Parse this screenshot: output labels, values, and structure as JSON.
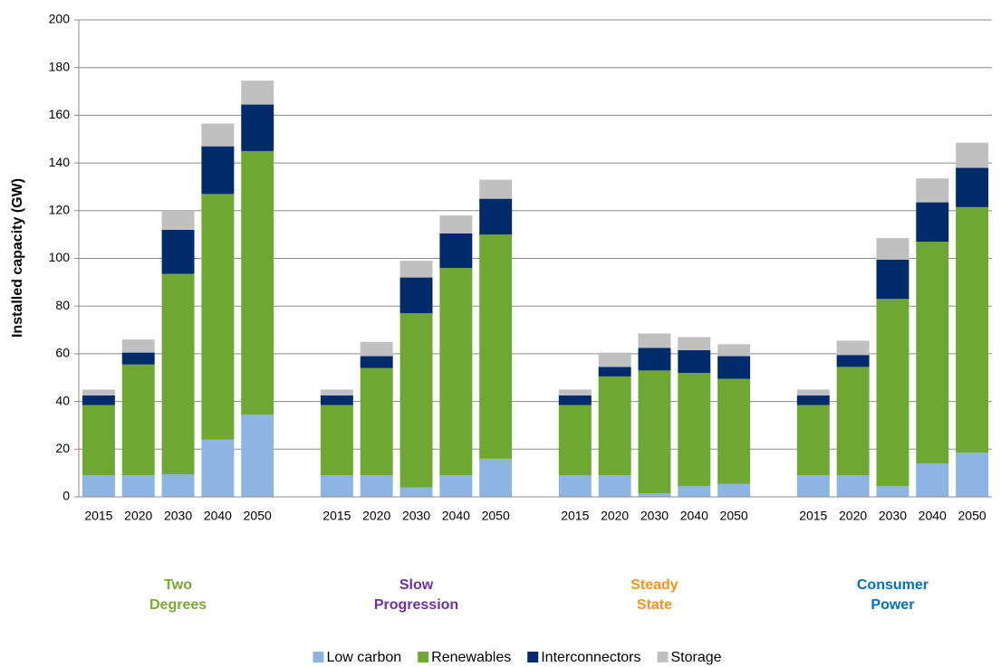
{
  "chart_data": {
    "type": "stacked-bar",
    "y_label": "Installed capacity (GW)",
    "ylim": [
      0,
      200
    ],
    "yticks": [
      0,
      20,
      40,
      60,
      80,
      100,
      120,
      140,
      160,
      180,
      200
    ],
    "grid": true,
    "groups": [
      {
        "name": "Two Degrees",
        "color": "#7aaa31",
        "categories": [
          "2015",
          "2020",
          "2030",
          "2040",
          "2050"
        ]
      },
      {
        "name": "Slow Progression",
        "color": "#7030a0",
        "categories": [
          "2015",
          "2020",
          "2030",
          "2040",
          "2050"
        ]
      },
      {
        "name": "Steady State",
        "color": "#f7941d",
        "categories": [
          "2015",
          "2020",
          "2030",
          "2040",
          "2050"
        ]
      },
      {
        "name": "Consumer Power",
        "color": "#0070c0",
        "categories": [
          "2015",
          "2020",
          "2030",
          "2040",
          "2050"
        ]
      }
    ],
    "series": [
      {
        "name": "Low carbon",
        "color": "#8db4e2",
        "values": [
          9,
          9,
          9.5,
          24,
          34.5,
          9,
          9,
          4,
          9,
          16,
          9,
          9,
          1.5,
          4.5,
          5.5,
          9,
          9,
          4.5,
          14,
          18.5
        ]
      },
      {
        "name": "Renewables",
        "color": "#6ea732",
        "values": [
          29.5,
          46.5,
          84,
          103,
          110.5,
          29.5,
          45,
          73,
          87,
          94,
          29.5,
          41.5,
          51.5,
          47.5,
          44,
          29.5,
          45.5,
          78.5,
          93,
          103
        ]
      },
      {
        "name": "Interconnectors",
        "color": "#002b6b",
        "values": [
          4,
          5,
          18.5,
          20,
          19.5,
          4,
          5,
          15,
          14.5,
          15,
          4,
          4,
          9.5,
          9.5,
          9.5,
          4,
          5,
          16.5,
          16.5,
          16.5
        ]
      },
      {
        "name": "Storage",
        "color": "#c0c0c0",
        "values": [
          2.5,
          5.5,
          8,
          9.5,
          10,
          2.5,
          6,
          7,
          7.5,
          8,
          2.5,
          6,
          6,
          5.5,
          5,
          2.5,
          6,
          9,
          10,
          10.5
        ]
      }
    ],
    "legend": "bottom"
  }
}
